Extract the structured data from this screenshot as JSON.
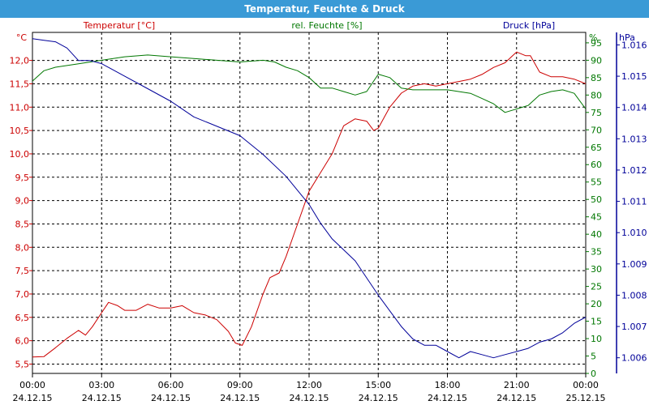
{
  "window": {
    "title": "Temperatur, Feuchte & Druck"
  },
  "chart_data": {
    "type": "line",
    "title": "Temperatur, Feuchte & Druck",
    "grid": true,
    "colors": {
      "temperature": "#cc0000",
      "humidity": "#007700",
      "pressure": "#000099",
      "title_bar": "#3a9ad6"
    },
    "x": {
      "range_hours": [
        0,
        24
      ],
      "ticks": [
        {
          "h": 0,
          "time": "00:00",
          "date": "24.12.15"
        },
        {
          "h": 3,
          "time": "03:00",
          "date": "24.12.15"
        },
        {
          "h": 6,
          "time": "06:00",
          "date": "24.12.15"
        },
        {
          "h": 9,
          "time": "09:00",
          "date": "24.12.15"
        },
        {
          "h": 12,
          "time": "12:00",
          "date": "24.12.15"
        },
        {
          "h": 15,
          "time": "15:00",
          "date": "24.12.15"
        },
        {
          "h": 18,
          "time": "18:00",
          "date": "24.12.15"
        },
        {
          "h": 21,
          "time": "21:00",
          "date": "24.12.15"
        },
        {
          "h": 24,
          "time": "00:00",
          "date": "25.12.15"
        }
      ]
    },
    "axes": {
      "temperature": {
        "label": "Temperatur [°C]",
        "unit": "°C",
        "ylim": [
          5.3,
          12.6
        ],
        "ticks": [
          "5,5",
          "6,0",
          "6,5",
          "7,0",
          "7,5",
          "8,0",
          "8,5",
          "9,0",
          "9,5",
          "10,0",
          "10,5",
          "11,0",
          "11,5",
          "12,0"
        ]
      },
      "humidity": {
        "label": "rel. Feuchte [%]",
        "unit": "%",
        "ylim": [
          0,
          98
        ],
        "ticks": [
          "0",
          "5",
          "10",
          "15",
          "20",
          "25",
          "30",
          "35",
          "40",
          "45",
          "50",
          "55",
          "60",
          "65",
          "70",
          "75",
          "80",
          "85",
          "90",
          "95"
        ]
      },
      "pressure": {
        "label": "Druck [hPa]",
        "unit": "hPa",
        "ylim": [
          1.0055,
          1.0164
        ],
        "ticks": [
          "1.006",
          "1.007",
          "1.008",
          "1.009",
          "1.010",
          "1.011",
          "1.012",
          "1.013",
          "1.014",
          "1.015",
          "1.016"
        ]
      }
    },
    "series": [
      {
        "name": "Temperatur [°C]",
        "axis": "temperature",
        "points": [
          [
            0,
            5.65
          ],
          [
            0.5,
            5.66
          ],
          [
            1,
            5.85
          ],
          [
            1.5,
            6.05
          ],
          [
            2,
            6.22
          ],
          [
            2.3,
            6.12
          ],
          [
            2.6,
            6.3
          ],
          [
            3,
            6.6
          ],
          [
            3.3,
            6.82
          ],
          [
            3.7,
            6.75
          ],
          [
            4,
            6.65
          ],
          [
            4.5,
            6.65
          ],
          [
            5,
            6.78
          ],
          [
            5.5,
            6.7
          ],
          [
            6,
            6.7
          ],
          [
            6.5,
            6.75
          ],
          [
            7,
            6.6
          ],
          [
            7.5,
            6.55
          ],
          [
            8,
            6.45
          ],
          [
            8.5,
            6.2
          ],
          [
            8.8,
            5.95
          ],
          [
            9.1,
            5.9
          ],
          [
            9.5,
            6.3
          ],
          [
            10,
            7.0
          ],
          [
            10.3,
            7.35
          ],
          [
            10.7,
            7.45
          ],
          [
            11,
            7.8
          ],
          [
            11.5,
            8.5
          ],
          [
            12,
            9.2
          ],
          [
            12.5,
            9.6
          ],
          [
            13,
            10.0
          ],
          [
            13.5,
            10.6
          ],
          [
            14,
            10.75
          ],
          [
            14.5,
            10.7
          ],
          [
            14.8,
            10.5
          ],
          [
            15,
            10.55
          ],
          [
            15.5,
            11.0
          ],
          [
            16,
            11.3
          ],
          [
            16.5,
            11.45
          ],
          [
            17,
            11.5
          ],
          [
            17.5,
            11.45
          ],
          [
            18,
            11.5
          ],
          [
            18.5,
            11.55
          ],
          [
            19,
            11.6
          ],
          [
            19.5,
            11.7
          ],
          [
            20,
            11.85
          ],
          [
            20.5,
            11.95
          ],
          [
            21,
            12.18
          ],
          [
            21.4,
            12.1
          ],
          [
            21.6,
            12.1
          ],
          [
            22,
            11.75
          ],
          [
            22.5,
            11.65
          ],
          [
            23,
            11.65
          ],
          [
            23.5,
            11.6
          ],
          [
            24,
            11.5
          ]
        ]
      },
      {
        "name": "rel. Feuchte [%]",
        "axis": "humidity",
        "points": [
          [
            0,
            84
          ],
          [
            0.5,
            87
          ],
          [
            1,
            88
          ],
          [
            2,
            89
          ],
          [
            3,
            90
          ],
          [
            4,
            91
          ],
          [
            5,
            91.5
          ],
          [
            6,
            91
          ],
          [
            7,
            90.5
          ],
          [
            8,
            90
          ],
          [
            9,
            89.5
          ],
          [
            10,
            90
          ],
          [
            10.5,
            89.5
          ],
          [
            11,
            88
          ],
          [
            11.5,
            87
          ],
          [
            12,
            85
          ],
          [
            12.5,
            82
          ],
          [
            13,
            82
          ],
          [
            13.5,
            81
          ],
          [
            14,
            80
          ],
          [
            14.5,
            81
          ],
          [
            15,
            86
          ],
          [
            15.5,
            85
          ],
          [
            16,
            82
          ],
          [
            16.5,
            81.5
          ],
          [
            17,
            81.5
          ],
          [
            18,
            81.5
          ],
          [
            19,
            80.5
          ],
          [
            19.5,
            79
          ],
          [
            20,
            77.5
          ],
          [
            20.5,
            75
          ],
          [
            21,
            76
          ],
          [
            21.5,
            77
          ],
          [
            22,
            80
          ],
          [
            22.5,
            81
          ],
          [
            23,
            81.5
          ],
          [
            23.5,
            80.5
          ],
          [
            24,
            76
          ]
        ]
      },
      {
        "name": "Druck [hPa]",
        "axis": "pressure",
        "points": [
          [
            0,
            1.0162
          ],
          [
            0.5,
            1.01615
          ],
          [
            1,
            1.0161
          ],
          [
            1.5,
            1.0159
          ],
          [
            2,
            1.0155
          ],
          [
            2.5,
            1.0155
          ],
          [
            3,
            1.0154
          ],
          [
            3.5,
            1.0152
          ],
          [
            4,
            1.015
          ],
          [
            5,
            1.0146
          ],
          [
            6,
            1.0142
          ],
          [
            7,
            1.0137
          ],
          [
            8,
            1.0134
          ],
          [
            9,
            1.0131
          ],
          [
            10,
            1.0125
          ],
          [
            11,
            1.0118
          ],
          [
            12,
            1.0109
          ],
          [
            12.5,
            1.0103
          ],
          [
            13,
            1.0098
          ],
          [
            14,
            1.0091
          ],
          [
            15,
            1.008
          ],
          [
            15.5,
            1.0075
          ],
          [
            16,
            1.007
          ],
          [
            16.5,
            1.0066
          ],
          [
            17,
            1.0064
          ],
          [
            17.5,
            1.0064
          ],
          [
            18,
            1.0062
          ],
          [
            18.5,
            1.006
          ],
          [
            19,
            1.0062
          ],
          [
            19.5,
            1.0061
          ],
          [
            20,
            1.006
          ],
          [
            20.5,
            1.0061
          ],
          [
            21,
            1.0062
          ],
          [
            21.5,
            1.0063
          ],
          [
            22,
            1.0065
          ],
          [
            22.5,
            1.0066
          ],
          [
            23,
            1.0068
          ],
          [
            23.5,
            1.0071
          ],
          [
            24,
            1.0073
          ]
        ]
      }
    ]
  }
}
